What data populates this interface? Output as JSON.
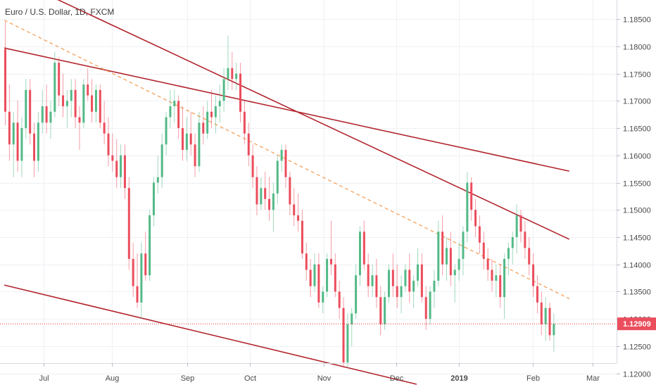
{
  "chart_data": {
    "type": "candlestick",
    "title": "Euro / U.S. Dollar, 1D, FXCM",
    "y_range": [
      1.1175,
      1.1885
    ],
    "y_ticks": [
      "1.18500",
      "1.18000",
      "1.17500",
      "1.17000",
      "1.16500",
      "1.16000",
      "1.15500",
      "1.15000",
      "1.14500",
      "1.14000",
      "1.13500",
      "1.13000",
      "1.12500",
      "1.12000"
    ],
    "x_ticks": [
      "Jul",
      "Aug",
      "Sep",
      "Oct",
      "Nov",
      "Dec",
      "2019",
      "Feb",
      "Mar"
    ],
    "x_tick_bold": "2019",
    "last_price": "1.12909",
    "colors": {
      "up": "#53b987",
      "down": "#eb4d5c",
      "trendline": "#b2262e",
      "dashed_line": "#f5a05a",
      "price_line": "#e02b2b",
      "price_label_bg": "#eb4d5c",
      "grid": "#eef0f4",
      "axis": "#d7dae0"
    },
    "trendlines": [
      {
        "style": "solid",
        "from": {
          "bar": -8,
          "price": 1.196
        },
        "to": {
          "bar": 137,
          "price": 1.1446
        }
      },
      {
        "style": "solid",
        "from": {
          "bar": 0,
          "price": 1.1797
        },
        "to": {
          "bar": 137,
          "price": 1.1571
        }
      },
      {
        "style": "solid",
        "from": {
          "bar": 0,
          "price": 1.1362
        },
        "to": {
          "bar": 100,
          "price": 1.118
        }
      },
      {
        "style": "dashed",
        "from": {
          "bar": 0,
          "price": 1.1848
        },
        "to": {
          "bar": 137,
          "price": 1.1337
        }
      }
    ],
    "candles": [
      [
        1.1795,
        1.1845,
        1.1655,
        1.168
      ],
      [
        1.168,
        1.173,
        1.159,
        1.162
      ],
      [
        1.162,
        1.168,
        1.156,
        1.166
      ],
      [
        1.166,
        1.17,
        1.157,
        1.159
      ],
      [
        1.159,
        1.167,
        1.156,
        1.165
      ],
      [
        1.165,
        1.174,
        1.163,
        1.172
      ],
      [
        1.172,
        1.174,
        1.162,
        1.164
      ],
      [
        1.164,
        1.166,
        1.156,
        1.159
      ],
      [
        1.159,
        1.168,
        1.157,
        1.166
      ],
      [
        1.166,
        1.172,
        1.164,
        1.169
      ],
      [
        1.169,
        1.173,
        1.164,
        1.166
      ],
      [
        1.166,
        1.17,
        1.163,
        1.168
      ],
      [
        1.168,
        1.179,
        1.167,
        1.177
      ],
      [
        1.177,
        1.178,
        1.169,
        1.171
      ],
      [
        1.171,
        1.175,
        1.167,
        1.169
      ],
      [
        1.169,
        1.172,
        1.165,
        1.17
      ],
      [
        1.17,
        1.174,
        1.167,
        1.172
      ],
      [
        1.172,
        1.174,
        1.165,
        1.167
      ],
      [
        1.167,
        1.169,
        1.161,
        1.166
      ],
      [
        1.166,
        1.174,
        1.165,
        1.173
      ],
      [
        1.173,
        1.176,
        1.17,
        1.171
      ],
      [
        1.171,
        1.174,
        1.166,
        1.168
      ],
      [
        1.168,
        1.173,
        1.166,
        1.172
      ],
      [
        1.172,
        1.173,
        1.165,
        1.166
      ],
      [
        1.166,
        1.17,
        1.162,
        1.164
      ],
      [
        1.164,
        1.167,
        1.158,
        1.16
      ],
      [
        1.16,
        1.164,
        1.157,
        1.159
      ],
      [
        1.159,
        1.163,
        1.154,
        1.156
      ],
      [
        1.156,
        1.162,
        1.154,
        1.16
      ],
      [
        1.16,
        1.162,
        1.152,
        1.154
      ],
      [
        1.154,
        1.156,
        1.139,
        1.141
      ],
      [
        1.141,
        1.144,
        1.134,
        1.136
      ],
      [
        1.136,
        1.142,
        1.132,
        1.133
      ],
      [
        1.133,
        1.144,
        1.13,
        1.142
      ],
      [
        1.142,
        1.146,
        1.137,
        1.138
      ],
      [
        1.138,
        1.15,
        1.137,
        1.149
      ],
      [
        1.149,
        1.156,
        1.147,
        1.155
      ],
      [
        1.155,
        1.16,
        1.153,
        1.156
      ],
      [
        1.156,
        1.164,
        1.154,
        1.162
      ],
      [
        1.162,
        1.168,
        1.16,
        1.167
      ],
      [
        1.167,
        1.172,
        1.165,
        1.169
      ],
      [
        1.169,
        1.172,
        1.166,
        1.17
      ],
      [
        1.17,
        1.171,
        1.163,
        1.165
      ],
      [
        1.165,
        1.169,
        1.159,
        1.161
      ],
      [
        1.161,
        1.167,
        1.159,
        1.164
      ],
      [
        1.164,
        1.168,
        1.16,
        1.162
      ],
      [
        1.162,
        1.164,
        1.156,
        1.158
      ],
      [
        1.158,
        1.168,
        1.157,
        1.166
      ],
      [
        1.166,
        1.169,
        1.162,
        1.164
      ],
      [
        1.164,
        1.17,
        1.163,
        1.168
      ],
      [
        1.168,
        1.172,
        1.165,
        1.167
      ],
      [
        1.167,
        1.171,
        1.164,
        1.169
      ],
      [
        1.169,
        1.173,
        1.166,
        1.17
      ],
      [
        1.17,
        1.176,
        1.168,
        1.174
      ],
      [
        1.174,
        1.182,
        1.172,
        1.176
      ],
      [
        1.176,
        1.179,
        1.172,
        1.174
      ],
      [
        1.174,
        1.177,
        1.172,
        1.175
      ],
      [
        1.175,
        1.177,
        1.166,
        1.168
      ],
      [
        1.168,
        1.17,
        1.162,
        1.164
      ],
      [
        1.164,
        1.166,
        1.158,
        1.16
      ],
      [
        1.16,
        1.162,
        1.154,
        1.156
      ],
      [
        1.156,
        1.158,
        1.149,
        1.151
      ],
      [
        1.151,
        1.156,
        1.15,
        1.154
      ],
      [
        1.154,
        1.157,
        1.15,
        1.152
      ],
      [
        1.152,
        1.156,
        1.148,
        1.15
      ],
      [
        1.15,
        1.155,
        1.146,
        1.153
      ],
      [
        1.153,
        1.16,
        1.151,
        1.159
      ],
      [
        1.159,
        1.162,
        1.157,
        1.161
      ],
      [
        1.161,
        1.162,
        1.154,
        1.156
      ],
      [
        1.156,
        1.157,
        1.149,
        1.151
      ],
      [
        1.151,
        1.154,
        1.147,
        1.149
      ],
      [
        1.149,
        1.153,
        1.146,
        1.148
      ],
      [
        1.148,
        1.15,
        1.141,
        1.142
      ],
      [
        1.142,
        1.144,
        1.137,
        1.139
      ],
      [
        1.139,
        1.141,
        1.134,
        1.136
      ],
      [
        1.136,
        1.142,
        1.135,
        1.14
      ],
      [
        1.14,
        1.142,
        1.132,
        1.133
      ],
      [
        1.133,
        1.136,
        1.131,
        1.135
      ],
      [
        1.135,
        1.142,
        1.134,
        1.141
      ],
      [
        1.141,
        1.148,
        1.138,
        1.14
      ],
      [
        1.14,
        1.142,
        1.134,
        1.135
      ],
      [
        1.135,
        1.137,
        1.13,
        1.132
      ],
      [
        1.132,
        1.134,
        1.121,
        1.122
      ],
      [
        1.122,
        1.131,
        1.121,
        1.129
      ],
      [
        1.129,
        1.132,
        1.125,
        1.131
      ],
      [
        1.131,
        1.14,
        1.13,
        1.138
      ],
      [
        1.138,
        1.147,
        1.136,
        1.146
      ],
      [
        1.146,
        1.148,
        1.139,
        1.14
      ],
      [
        1.14,
        1.142,
        1.134,
        1.136
      ],
      [
        1.136,
        1.14,
        1.134,
        1.138
      ],
      [
        1.138,
        1.141,
        1.132,
        1.134
      ],
      [
        1.134,
        1.136,
        1.127,
        1.129
      ],
      [
        1.129,
        1.135,
        1.128,
        1.134
      ],
      [
        1.134,
        1.14,
        1.133,
        1.139
      ],
      [
        1.139,
        1.142,
        1.134,
        1.136
      ],
      [
        1.136,
        1.14,
        1.132,
        1.134
      ],
      [
        1.134,
        1.138,
        1.131,
        1.136
      ],
      [
        1.136,
        1.14,
        1.135,
        1.139
      ],
      [
        1.139,
        1.142,
        1.133,
        1.135
      ],
      [
        1.135,
        1.138,
        1.132,
        1.137
      ],
      [
        1.137,
        1.143,
        1.136,
        1.14
      ],
      [
        1.14,
        1.142,
        1.133,
        1.134
      ],
      [
        1.134,
        1.136,
        1.128,
        1.13
      ],
      [
        1.13,
        1.136,
        1.129,
        1.135
      ],
      [
        1.135,
        1.139,
        1.132,
        1.137
      ],
      [
        1.137,
        1.148,
        1.136,
        1.146
      ],
      [
        1.146,
        1.149,
        1.138,
        1.14
      ],
      [
        1.14,
        1.145,
        1.137,
        1.143
      ],
      [
        1.143,
        1.146,
        1.136,
        1.138
      ],
      [
        1.138,
        1.14,
        1.133,
        1.139
      ],
      [
        1.139,
        1.144,
        1.137,
        1.141
      ],
      [
        1.141,
        1.147,
        1.138,
        1.146
      ],
      [
        1.146,
        1.157,
        1.144,
        1.155
      ],
      [
        1.155,
        1.156,
        1.148,
        1.15
      ],
      [
        1.15,
        1.152,
        1.145,
        1.147
      ],
      [
        1.147,
        1.149,
        1.142,
        1.144
      ],
      [
        1.144,
        1.146,
        1.139,
        1.141
      ],
      [
        1.141,
        1.143,
        1.137,
        1.139
      ],
      [
        1.139,
        1.141,
        1.135,
        1.137
      ],
      [
        1.137,
        1.14,
        1.134,
        1.138
      ],
      [
        1.138,
        1.14,
        1.132,
        1.134
      ],
      [
        1.134,
        1.142,
        1.13,
        1.141
      ],
      [
        1.141,
        1.144,
        1.138,
        1.143
      ],
      [
        1.143,
        1.146,
        1.14,
        1.145
      ],
      [
        1.145,
        1.151,
        1.142,
        1.149
      ],
      [
        1.149,
        1.15,
        1.144,
        1.146
      ],
      [
        1.146,
        1.148,
        1.141,
        1.143
      ],
      [
        1.143,
        1.145,
        1.138,
        1.14
      ],
      [
        1.14,
        1.142,
        1.134,
        1.136
      ],
      [
        1.136,
        1.138,
        1.131,
        1.133
      ],
      [
        1.133,
        1.135,
        1.127,
        1.129
      ],
      [
        1.129,
        1.134,
        1.126,
        1.132
      ],
      [
        1.132,
        1.133,
        1.126,
        1.127
      ],
      [
        1.127,
        1.131,
        1.124,
        1.1291
      ]
    ]
  }
}
